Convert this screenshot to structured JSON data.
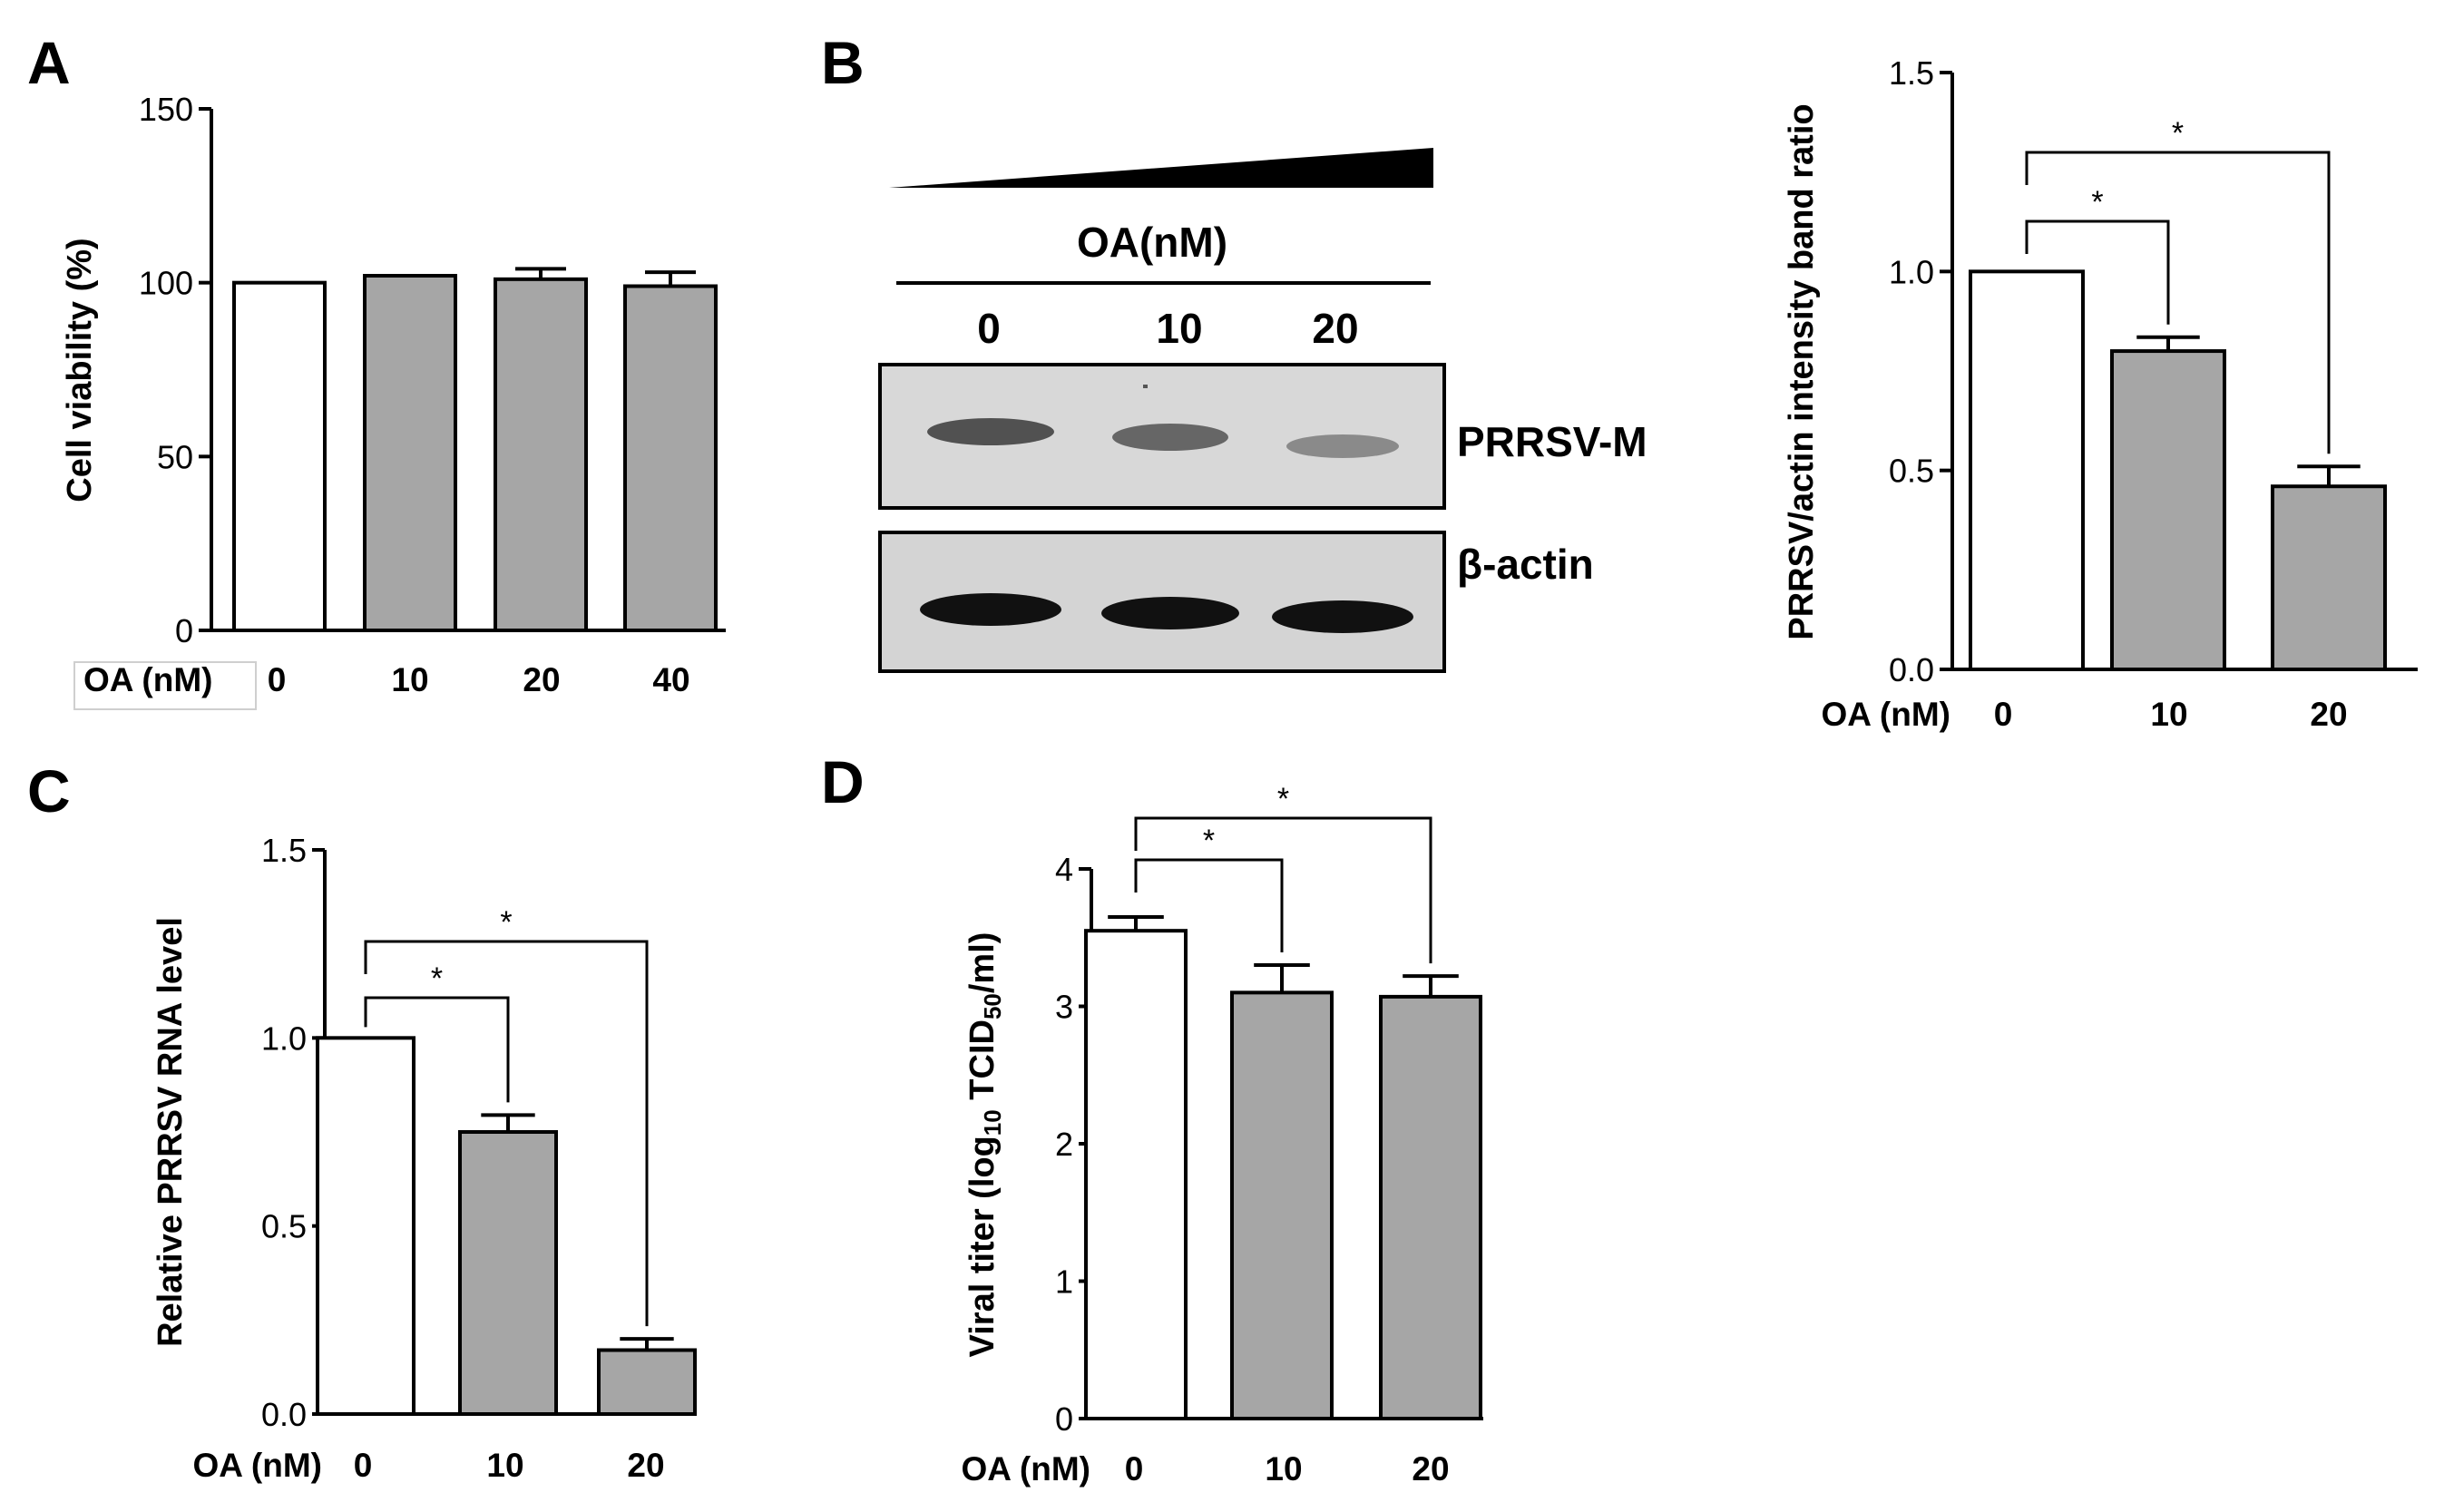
{
  "panels": {
    "A": {
      "letter": "A"
    },
    "B": {
      "letter": "B"
    },
    "C": {
      "letter": "C"
    },
    "D": {
      "letter": "D"
    }
  },
  "western_blot": {
    "treatment_label": "OA(nM)",
    "lanes": [
      "0",
      "10",
      "20"
    ],
    "bands": [
      "PRRSV-M",
      "β-actin"
    ]
  },
  "chart_data": [
    {
      "panel": "A",
      "type": "bar",
      "categories": [
        "0",
        "10",
        "20",
        "40"
      ],
      "values": [
        100,
        102,
        101,
        99
      ],
      "errors": [
        0,
        0,
        3,
        4
      ],
      "fills": [
        "#ffffff",
        "#a6a6a6",
        "#a6a6a6",
        "#a6a6a6"
      ],
      "ylabel": "Cell viability (%)",
      "xlabel": "OA (nM)",
      "ylim": [
        0,
        150
      ],
      "yticks": [
        "0",
        "50",
        "100",
        "150"
      ],
      "significance": []
    },
    {
      "panel": "B",
      "type": "bar",
      "categories": [
        "0",
        "10",
        "20"
      ],
      "values": [
        1.0,
        0.8,
        0.46
      ],
      "errors": [
        0,
        0.035,
        0.05
      ],
      "fills": [
        "#ffffff",
        "#a6a6a6",
        "#a6a6a6"
      ],
      "ylabel": "PRRSV/actin intensity band ratio",
      "xlabel": "OA (nM)",
      "ylim": [
        0,
        1.5
      ],
      "yticks": [
        "0.0",
        "0.5",
        "1.0",
        "1.5"
      ],
      "significance": [
        {
          "from": 0,
          "to": 1,
          "label": "*"
        },
        {
          "from": 0,
          "to": 2,
          "label": "*"
        }
      ]
    },
    {
      "panel": "C",
      "type": "bar",
      "categories": [
        "0",
        "10",
        "20"
      ],
      "values": [
        1.0,
        0.75,
        0.17
      ],
      "errors": [
        0,
        0.045,
        0.03
      ],
      "fills": [
        "#ffffff",
        "#a6a6a6",
        "#a6a6a6"
      ],
      "ylabel": "Relative PRRSV RNA level",
      "xlabel": "OA (nM)",
      "ylim": [
        0,
        1.5
      ],
      "yticks": [
        "0.0",
        "0.5",
        "1.0",
        "1.5"
      ],
      "significance": [
        {
          "from": 0,
          "to": 1,
          "label": "*"
        },
        {
          "from": 0,
          "to": 2,
          "label": "*"
        }
      ]
    },
    {
      "panel": "D",
      "type": "bar",
      "categories": [
        "0",
        "10",
        "20"
      ],
      "values": [
        3.55,
        3.1,
        3.07
      ],
      "errors": [
        0.1,
        0.2,
        0.15
      ],
      "fills": [
        "#ffffff",
        "#a6a6a6",
        "#a6a6a6"
      ],
      "ylabel": "Viral titer (log10 TCID50/ml)",
      "xlabel": "OA (nM)",
      "ylim": [
        0,
        4
      ],
      "yticks": [
        "0",
        "1",
        "2",
        "3",
        "4"
      ],
      "significance": [
        {
          "from": 0,
          "to": 1,
          "label": "*"
        },
        {
          "from": 0,
          "to": 2,
          "label": "*"
        }
      ]
    }
  ]
}
